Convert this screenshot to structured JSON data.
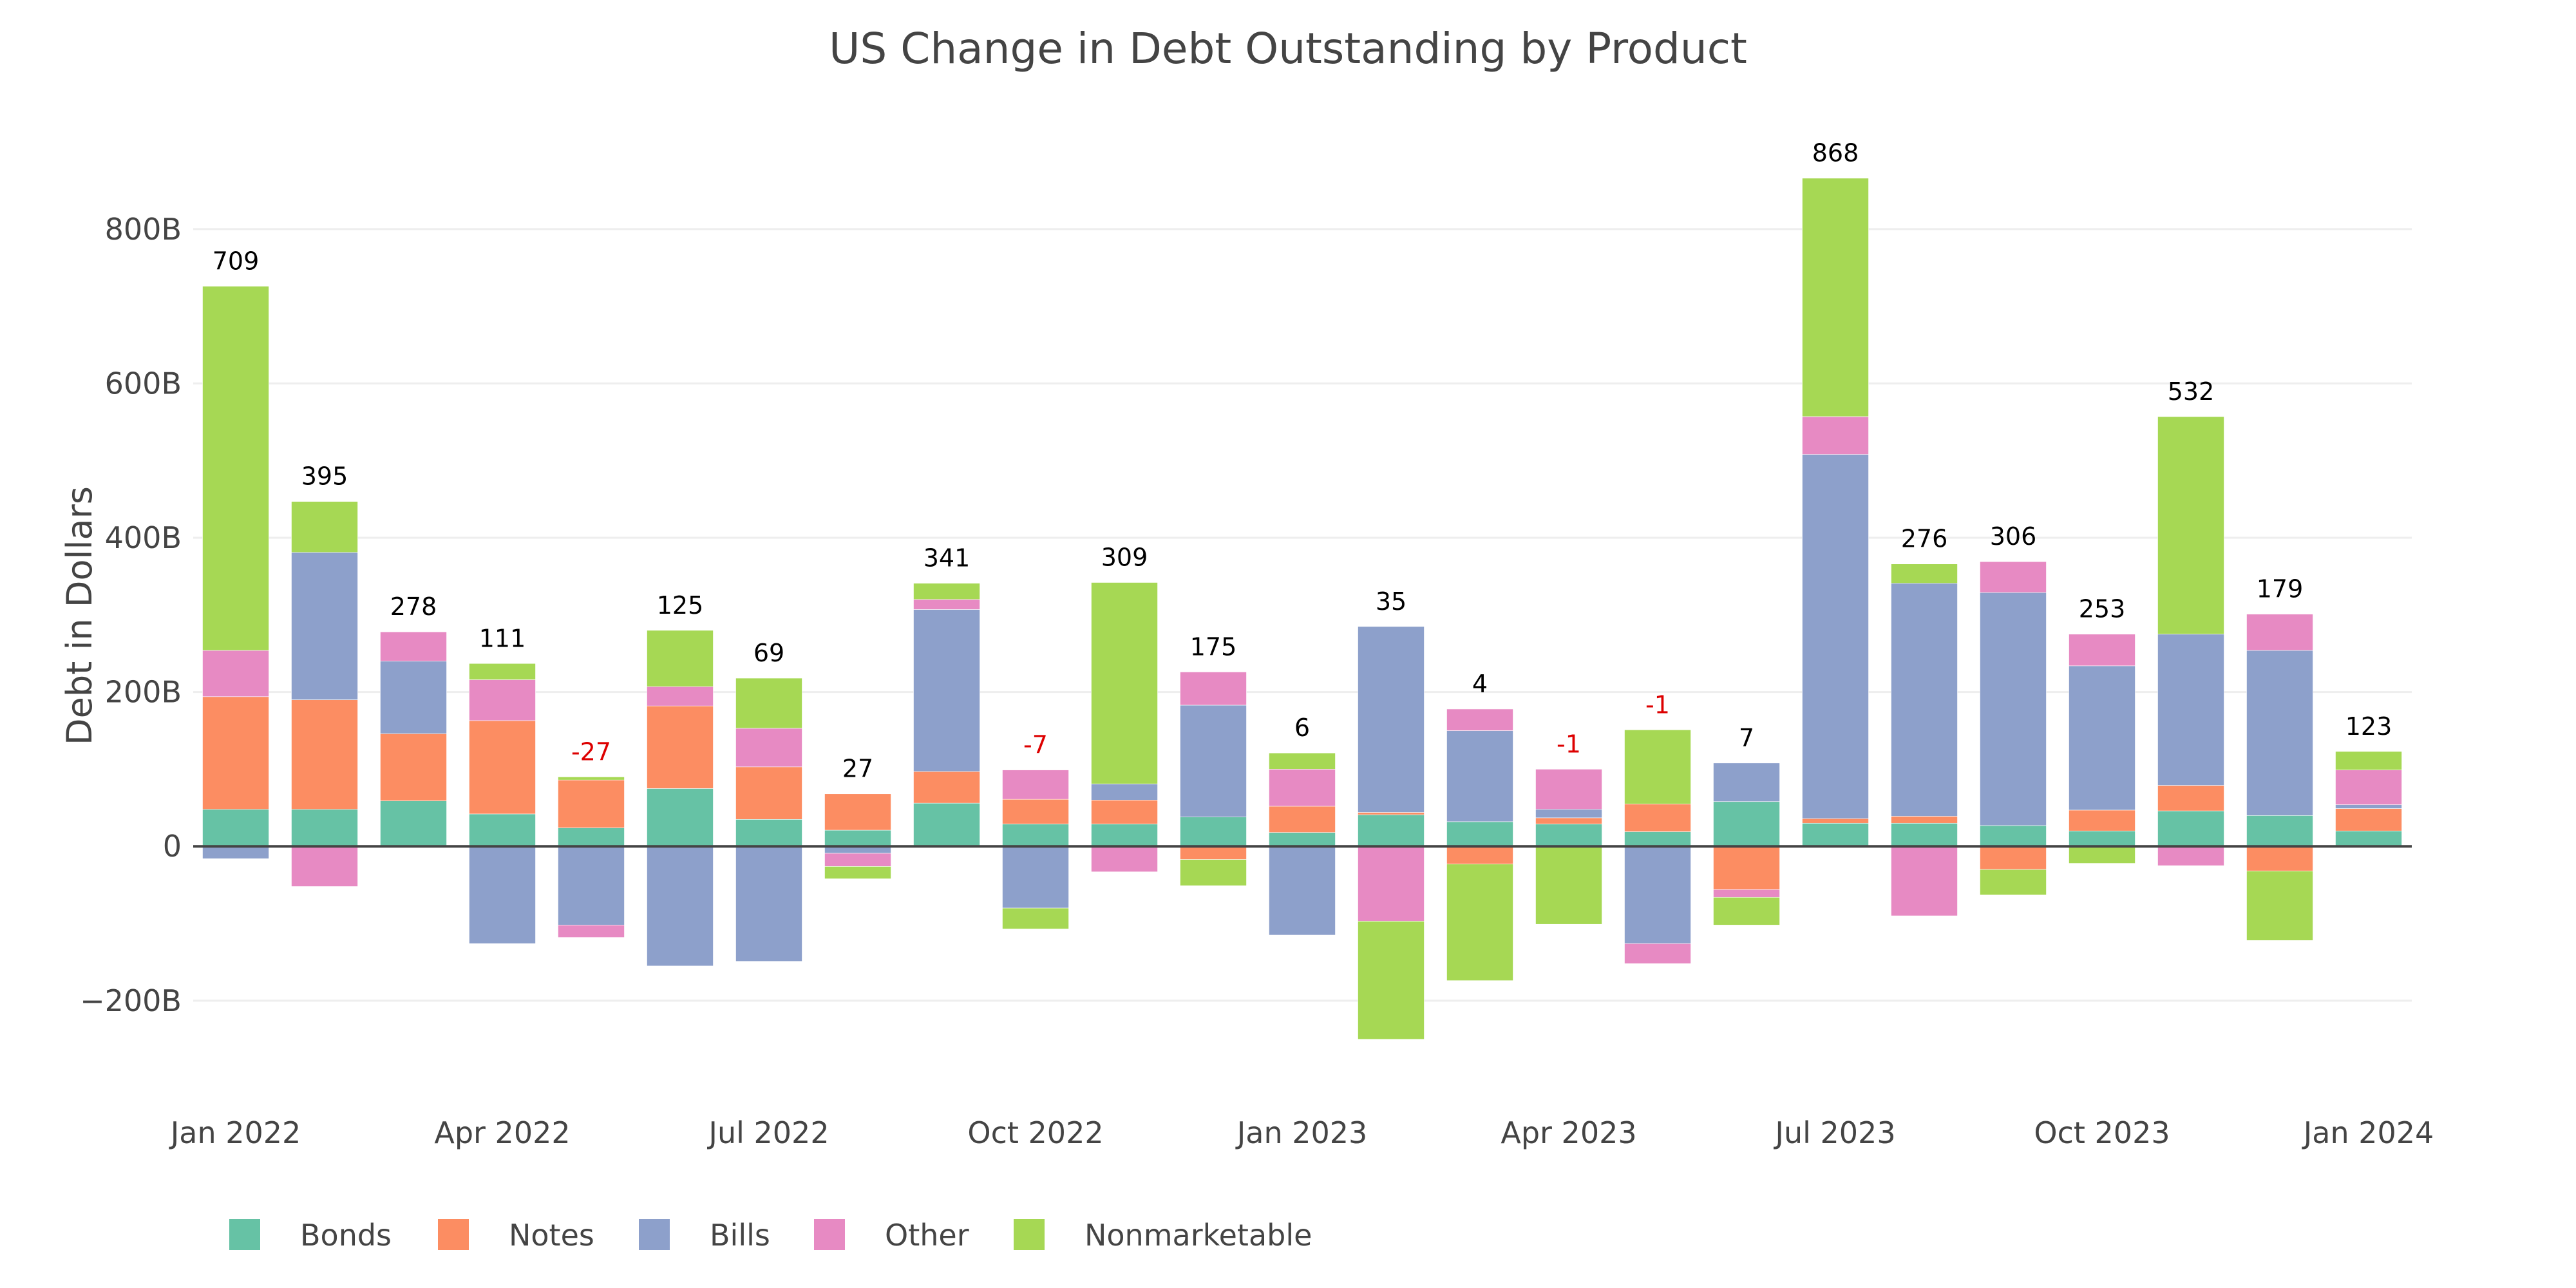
{
  "chart_data": {
    "type": "bar",
    "barmode": "relative",
    "title": "US Change in Debt Outstanding by Product",
    "xlabel": "",
    "ylabel": "Debt in Dollars",
    "ylim": [
      -322,
      930
    ],
    "y_unit": "B",
    "yticks": [
      {
        "value": -200,
        "label": "−200B"
      },
      {
        "value": 0,
        "label": "0"
      },
      {
        "value": 200,
        "label": "200B"
      },
      {
        "value": 400,
        "label": "400B"
      },
      {
        "value": 600,
        "label": "600B"
      },
      {
        "value": 800,
        "label": "800B"
      }
    ],
    "grid": true,
    "legend_position": "bottom-left",
    "categories": [
      "2022-01",
      "2022-02",
      "2022-03",
      "2022-04",
      "2022-05",
      "2022-06",
      "2022-07",
      "2022-08",
      "2022-09",
      "2022-10",
      "2022-11",
      "2022-12",
      "2023-01",
      "2023-02",
      "2023-03",
      "2023-04",
      "2023-05",
      "2023-06",
      "2023-07",
      "2023-08",
      "2023-09",
      "2023-10",
      "2023-11",
      "2023-12",
      "2024-01"
    ],
    "xticks": [
      {
        "index": 0,
        "label": "Jan 2022"
      },
      {
        "index": 3,
        "label": "Apr 2022"
      },
      {
        "index": 6,
        "label": "Jul 2022"
      },
      {
        "index": 9,
        "label": "Oct 2022"
      },
      {
        "index": 12,
        "label": "Jan 2023"
      },
      {
        "index": 15,
        "label": "Apr 2023"
      },
      {
        "index": 18,
        "label": "Jul 2023"
      },
      {
        "index": 21,
        "label": "Oct 2023"
      },
      {
        "index": 24,
        "label": "Jan 2024"
      }
    ],
    "series": [
      {
        "name": "Bonds",
        "color": "#66c2a5",
        "values": [
          48,
          48,
          59,
          42,
          24,
          75,
          35,
          21,
          56,
          29,
          29,
          38,
          18,
          41,
          32,
          29,
          19,
          58,
          30,
          30,
          27,
          20,
          46,
          40,
          20
        ]
      },
      {
        "name": "Notes",
        "color": "#fc8d62",
        "values": [
          146,
          142,
          87,
          121,
          62,
          107,
          68,
          47,
          41,
          32,
          31,
          -17,
          34,
          3,
          -23,
          8,
          36,
          -56,
          6,
          9,
          -30,
          27,
          33,
          -32,
          29
        ]
      },
      {
        "name": "Bills",
        "color": "#8da0cb",
        "values": [
          -16,
          191,
          94,
          -126,
          -102,
          -155,
          -149,
          -9,
          210,
          -80,
          21,
          145,
          -115,
          241,
          118,
          11,
          -126,
          50,
          472,
          302,
          302,
          187,
          196,
          214,
          5
        ]
      },
      {
        "name": "Other",
        "color": "#e78ac3",
        "values": [
          60,
          -52,
          38,
          53,
          -16,
          25,
          50,
          -17,
          13,
          38,
          -33,
          43,
          48,
          -97,
          28,
          52,
          -26,
          -10,
          49,
          -90,
          40,
          41,
          -25,
          47,
          45
        ]
      },
      {
        "name": "Nonmarketable",
        "color": "#a6d854",
        "values": [
          472,
          66,
          0,
          21,
          4,
          73,
          65,
          -16,
          21,
          -27,
          261,
          -34,
          21,
          -153,
          -151,
          -101,
          96,
          -36,
          309,
          25,
          -33,
          -22,
          282,
          -90,
          24
        ]
      }
    ],
    "totals": [
      709,
      395,
      278,
      111,
      -27,
      125,
      69,
      27,
      341,
      -7,
      309,
      175,
      6,
      35,
      4,
      -1,
      -1,
      7,
      868,
      276,
      306,
      253,
      532,
      179,
      123
    ],
    "total_label_colors": {
      "positive": "#000000",
      "negative": "#dd0000"
    }
  }
}
